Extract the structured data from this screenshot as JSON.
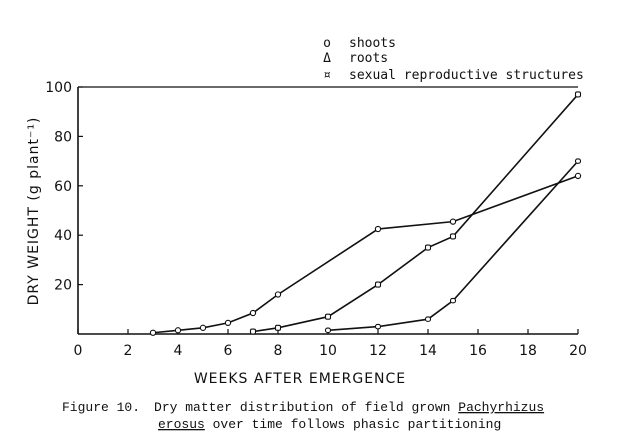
{
  "chart_data": {
    "type": "line",
    "title": "",
    "xlabel": "WEEKS AFTER EMERGENCE",
    "ylabel": "DRY WEIGHT (g plant⁻¹)",
    "xlim": [
      0,
      20
    ],
    "ylim": [
      0,
      100
    ],
    "xticks": [
      0,
      2,
      4,
      6,
      8,
      10,
      12,
      14,
      16,
      18,
      20
    ],
    "yticks": [
      20,
      40,
      60,
      80,
      100
    ],
    "grid": false,
    "legend_position": "top-right",
    "series": [
      {
        "name": "shoots",
        "marker": "o",
        "x": [
          3,
          4,
          5,
          6,
          7,
          8,
          12,
          15,
          20
        ],
        "y": [
          0.5,
          1.5,
          2.5,
          4.5,
          8.5,
          16,
          42.5,
          45.5,
          64
        ]
      },
      {
        "name": "roots",
        "marker": "Δ",
        "x": [
          7,
          8,
          10,
          12,
          14,
          15,
          20
        ],
        "y": [
          1,
          2.5,
          7,
          20,
          35,
          39.5,
          97
        ]
      },
      {
        "name": "sexual reproductive structures",
        "marker": "¤",
        "x": [
          10,
          12,
          14,
          15,
          20
        ],
        "y": [
          1.5,
          3,
          6,
          13.5,
          70
        ]
      }
    ]
  },
  "caption": {
    "figure_label": "Figure 10.",
    "line1": "Dry matter distribution of field grown ",
    "line1_underlined": "Pachyrhizus",
    "line2_underlined": "erosus",
    "line2": " over time follows phasic partitioning"
  },
  "colors": {
    "ink": "#111111",
    "background": "#ffffff"
  }
}
